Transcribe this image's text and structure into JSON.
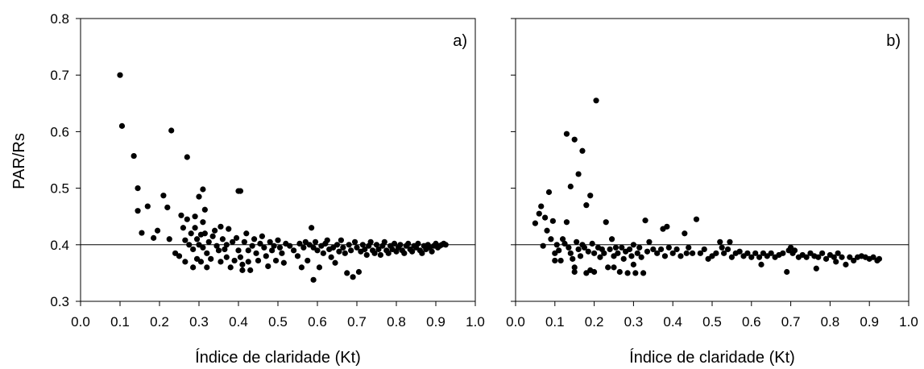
{
  "figure": {
    "ylabel": "PAR/Rs",
    "ref_line_y": 0.4
  },
  "chart_data": [
    {
      "type": "scatter",
      "panel_label": "a)",
      "xlabel": "Índice de claridade (Kt)",
      "ylabel": "PAR/Rs",
      "xlim": [
        0.0,
        1.0
      ],
      "ylim": [
        0.3,
        0.8
      ],
      "x_ticks": [
        "0.0",
        "0.1",
        "0.2",
        "0.3",
        "0.4",
        "0.5",
        "0.6",
        "0.7",
        "0.8",
        "0.9",
        "1.0"
      ],
      "y_ticks": [
        "0.3",
        "0.4",
        "0.5",
        "0.6",
        "0.7",
        "0.8"
      ],
      "reference_line": 0.4,
      "grid": false,
      "points": [
        [
          0.1,
          0.7
        ],
        [
          0.105,
          0.61
        ],
        [
          0.135,
          0.557
        ],
        [
          0.145,
          0.5
        ],
        [
          0.145,
          0.46
        ],
        [
          0.155,
          0.421
        ],
        [
          0.17,
          0.468
        ],
        [
          0.185,
          0.412
        ],
        [
          0.195,
          0.425
        ],
        [
          0.21,
          0.487
        ],
        [
          0.22,
          0.466
        ],
        [
          0.225,
          0.41
        ],
        [
          0.23,
          0.602
        ],
        [
          0.24,
          0.385
        ],
        [
          0.25,
          0.38
        ],
        [
          0.255,
          0.452
        ],
        [
          0.26,
          0.43
        ],
        [
          0.265,
          0.408
        ],
        [
          0.265,
          0.37
        ],
        [
          0.27,
          0.555
        ],
        [
          0.27,
          0.445
        ],
        [
          0.275,
          0.4
        ],
        [
          0.28,
          0.42
        ],
        [
          0.285,
          0.392
        ],
        [
          0.285,
          0.36
        ],
        [
          0.29,
          0.45
        ],
        [
          0.29,
          0.43
        ],
        [
          0.295,
          0.41
        ],
        [
          0.295,
          0.375
        ],
        [
          0.3,
          0.485
        ],
        [
          0.3,
          0.4
        ],
        [
          0.305,
          0.418
        ],
        [
          0.305,
          0.37
        ],
        [
          0.31,
          0.498
        ],
        [
          0.31,
          0.44
        ],
        [
          0.31,
          0.395
        ],
        [
          0.315,
          0.462
        ],
        [
          0.315,
          0.42
        ],
        [
          0.32,
          0.385
        ],
        [
          0.32,
          0.36
        ],
        [
          0.325,
          0.405
        ],
        [
          0.33,
          0.375
        ],
        [
          0.335,
          0.415
        ],
        [
          0.34,
          0.425
        ],
        [
          0.345,
          0.398
        ],
        [
          0.35,
          0.39
        ],
        [
          0.355,
          0.37
        ],
        [
          0.355,
          0.432
        ],
        [
          0.36,
          0.41
        ],
        [
          0.365,
          0.392
        ],
        [
          0.37,
          0.4
        ],
        [
          0.37,
          0.378
        ],
        [
          0.375,
          0.428
        ],
        [
          0.38,
          0.36
        ],
        [
          0.385,
          0.405
        ],
        [
          0.39,
          0.372
        ],
        [
          0.395,
          0.412
        ],
        [
          0.4,
          0.495
        ],
        [
          0.4,
          0.39
        ],
        [
          0.405,
          0.495
        ],
        [
          0.405,
          0.378
        ],
        [
          0.41,
          0.365
        ],
        [
          0.41,
          0.355
        ],
        [
          0.415,
          0.405
        ],
        [
          0.42,
          0.42
        ],
        [
          0.425,
          0.39
        ],
        [
          0.425,
          0.37
        ],
        [
          0.43,
          0.355
        ],
        [
          0.435,
          0.398
        ],
        [
          0.44,
          0.41
        ],
        [
          0.445,
          0.385
        ],
        [
          0.45,
          0.372
        ],
        [
          0.455,
          0.402
        ],
        [
          0.46,
          0.415
        ],
        [
          0.465,
          0.395
        ],
        [
          0.47,
          0.38
        ],
        [
          0.475,
          0.362
        ],
        [
          0.48,
          0.405
        ],
        [
          0.485,
          0.39
        ],
        [
          0.49,
          0.398
        ],
        [
          0.495,
          0.372
        ],
        [
          0.5,
          0.408
        ],
        [
          0.505,
          0.395
        ],
        [
          0.51,
          0.385
        ],
        [
          0.515,
          0.368
        ],
        [
          0.52,
          0.402
        ],
        [
          0.53,
          0.398
        ],
        [
          0.54,
          0.39
        ],
        [
          0.55,
          0.38
        ],
        [
          0.555,
          0.402
        ],
        [
          0.56,
          0.36
        ],
        [
          0.565,
          0.395
        ],
        [
          0.57,
          0.405
        ],
        [
          0.575,
          0.372
        ],
        [
          0.58,
          0.4
        ],
        [
          0.585,
          0.43
        ],
        [
          0.59,
          0.395
        ],
        [
          0.59,
          0.338
        ],
        [
          0.595,
          0.405
        ],
        [
          0.6,
          0.39
        ],
        [
          0.605,
          0.36
        ],
        [
          0.61,
          0.398
        ],
        [
          0.615,
          0.385
        ],
        [
          0.62,
          0.402
        ],
        [
          0.625,
          0.408
        ],
        [
          0.63,
          0.392
        ],
        [
          0.635,
          0.378
        ],
        [
          0.64,
          0.395
        ],
        [
          0.645,
          0.368
        ],
        [
          0.65,
          0.4
        ],
        [
          0.655,
          0.388
        ],
        [
          0.66,
          0.408
        ],
        [
          0.665,
          0.395
        ],
        [
          0.67,
          0.385
        ],
        [
          0.675,
          0.35
        ],
        [
          0.68,
          0.4
        ],
        [
          0.685,
          0.39
        ],
        [
          0.69,
          0.343
        ],
        [
          0.695,
          0.405
        ],
        [
          0.7,
          0.395
        ],
        [
          0.705,
          0.352
        ],
        [
          0.71,
          0.388
        ],
        [
          0.715,
          0.4
        ],
        [
          0.72,
          0.392
        ],
        [
          0.725,
          0.382
        ],
        [
          0.73,
          0.398
        ],
        [
          0.735,
          0.405
        ],
        [
          0.74,
          0.39
        ],
        [
          0.745,
          0.385
        ],
        [
          0.75,
          0.4
        ],
        [
          0.755,
          0.392
        ],
        [
          0.76,
          0.382
        ],
        [
          0.765,
          0.398
        ],
        [
          0.77,
          0.405
        ],
        [
          0.775,
          0.39
        ],
        [
          0.78,
          0.385
        ],
        [
          0.785,
          0.398
        ],
        [
          0.79,
          0.392
        ],
        [
          0.795,
          0.402
        ],
        [
          0.8,
          0.388
        ],
        [
          0.805,
          0.395
        ],
        [
          0.81,
          0.4
        ],
        [
          0.815,
          0.39
        ],
        [
          0.82,
          0.385
        ],
        [
          0.825,
          0.398
        ],
        [
          0.83,
          0.402
        ],
        [
          0.835,
          0.392
        ],
        [
          0.84,
          0.388
        ],
        [
          0.845,
          0.398
        ],
        [
          0.85,
          0.395
        ],
        [
          0.855,
          0.402
        ],
        [
          0.86,
          0.39
        ],
        [
          0.865,
          0.385
        ],
        [
          0.87,
          0.398
        ],
        [
          0.875,
          0.392
        ],
        [
          0.88,
          0.4
        ],
        [
          0.885,
          0.395
        ],
        [
          0.89,
          0.388
        ],
        [
          0.895,
          0.398
        ],
        [
          0.9,
          0.402
        ],
        [
          0.905,
          0.395
        ],
        [
          0.91,
          0.398
        ],
        [
          0.915,
          0.4
        ],
        [
          0.92,
          0.402
        ],
        [
          0.925,
          0.4
        ]
      ]
    },
    {
      "type": "scatter",
      "panel_label": "b)",
      "xlabel": "Índice de claridade (Kt)",
      "ylabel": "",
      "xlim": [
        0.0,
        1.0
      ],
      "ylim": [
        0.3,
        0.8
      ],
      "x_ticks": [
        "0.0",
        "0.1",
        "0.2",
        "0.3",
        "0.4",
        "0.5",
        "0.6",
        "0.7",
        "0.8",
        "0.9",
        "1.0"
      ],
      "y_ticks": [],
      "reference_line": 0.4,
      "grid": false,
      "points": [
        [
          0.05,
          0.438
        ],
        [
          0.06,
          0.455
        ],
        [
          0.065,
          0.468
        ],
        [
          0.07,
          0.398
        ],
        [
          0.075,
          0.448
        ],
        [
          0.08,
          0.425
        ],
        [
          0.085,
          0.493
        ],
        [
          0.09,
          0.41
        ],
        [
          0.095,
          0.442
        ],
        [
          0.1,
          0.385
        ],
        [
          0.1,
          0.372
        ],
        [
          0.105,
          0.4
        ],
        [
          0.11,
          0.39
        ],
        [
          0.115,
          0.372
        ],
        [
          0.12,
          0.41
        ],
        [
          0.125,
          0.402
        ],
        [
          0.13,
          0.596
        ],
        [
          0.13,
          0.44
        ],
        [
          0.135,
          0.395
        ],
        [
          0.14,
          0.385
        ],
        [
          0.14,
          0.503
        ],
        [
          0.145,
          0.375
        ],
        [
          0.15,
          0.586
        ],
        [
          0.15,
          0.36
        ],
        [
          0.15,
          0.352
        ],
        [
          0.155,
          0.405
        ],
        [
          0.16,
          0.392
        ],
        [
          0.16,
          0.525
        ],
        [
          0.165,
          0.38
        ],
        [
          0.17,
          0.4
        ],
        [
          0.17,
          0.566
        ],
        [
          0.175,
          0.395
        ],
        [
          0.18,
          0.35
        ],
        [
          0.18,
          0.47
        ],
        [
          0.185,
          0.388
        ],
        [
          0.19,
          0.487
        ],
        [
          0.19,
          0.355
        ],
        [
          0.195,
          0.402
        ],
        [
          0.2,
          0.385
        ],
        [
          0.2,
          0.352
        ],
        [
          0.205,
          0.655
        ],
        [
          0.21,
          0.395
        ],
        [
          0.215,
          0.378
        ],
        [
          0.22,
          0.392
        ],
        [
          0.225,
          0.385
        ],
        [
          0.23,
          0.44
        ],
        [
          0.235,
          0.36
        ],
        [
          0.24,
          0.392
        ],
        [
          0.245,
          0.41
        ],
        [
          0.25,
          0.38
        ],
        [
          0.25,
          0.36
        ],
        [
          0.255,
          0.395
        ],
        [
          0.26,
          0.385
        ],
        [
          0.265,
          0.352
        ],
        [
          0.27,
          0.395
        ],
        [
          0.275,
          0.375
        ],
        [
          0.28,
          0.388
        ],
        [
          0.285,
          0.35
        ],
        [
          0.29,
          0.392
        ],
        [
          0.295,
          0.38
        ],
        [
          0.3,
          0.4
        ],
        [
          0.3,
          0.365
        ],
        [
          0.305,
          0.35
        ],
        [
          0.31,
          0.385
        ],
        [
          0.315,
          0.395
        ],
        [
          0.32,
          0.378
        ],
        [
          0.325,
          0.35
        ],
        [
          0.33,
          0.443
        ],
        [
          0.335,
          0.388
        ],
        [
          0.34,
          0.405
        ],
        [
          0.35,
          0.392
        ],
        [
          0.36,
          0.385
        ],
        [
          0.37,
          0.392
        ],
        [
          0.375,
          0.428
        ],
        [
          0.38,
          0.38
        ],
        [
          0.385,
          0.432
        ],
        [
          0.39,
          0.395
        ],
        [
          0.4,
          0.385
        ],
        [
          0.41,
          0.392
        ],
        [
          0.42,
          0.38
        ],
        [
          0.43,
          0.42
        ],
        [
          0.435,
          0.385
        ],
        [
          0.44,
          0.395
        ],
        [
          0.45,
          0.385
        ],
        [
          0.46,
          0.445
        ],
        [
          0.47,
          0.385
        ],
        [
          0.48,
          0.392
        ],
        [
          0.49,
          0.375
        ],
        [
          0.5,
          0.38
        ],
        [
          0.51,
          0.385
        ],
        [
          0.52,
          0.405
        ],
        [
          0.525,
          0.395
        ],
        [
          0.53,
          0.385
        ],
        [
          0.54,
          0.392
        ],
        [
          0.545,
          0.405
        ],
        [
          0.55,
          0.378
        ],
        [
          0.56,
          0.385
        ],
        [
          0.57,
          0.388
        ],
        [
          0.58,
          0.38
        ],
        [
          0.59,
          0.385
        ],
        [
          0.6,
          0.378
        ],
        [
          0.61,
          0.385
        ],
        [
          0.62,
          0.378
        ],
        [
          0.625,
          0.365
        ],
        [
          0.63,
          0.385
        ],
        [
          0.64,
          0.38
        ],
        [
          0.65,
          0.385
        ],
        [
          0.66,
          0.378
        ],
        [
          0.67,
          0.382
        ],
        [
          0.68,
          0.385
        ],
        [
          0.69,
          0.352
        ],
        [
          0.695,
          0.39
        ],
        [
          0.7,
          0.395
        ],
        [
          0.705,
          0.385
        ],
        [
          0.71,
          0.39
        ],
        [
          0.72,
          0.378
        ],
        [
          0.73,
          0.382
        ],
        [
          0.74,
          0.378
        ],
        [
          0.75,
          0.385
        ],
        [
          0.76,
          0.38
        ],
        [
          0.765,
          0.358
        ],
        [
          0.77,
          0.378
        ],
        [
          0.78,
          0.385
        ],
        [
          0.79,
          0.375
        ],
        [
          0.8,
          0.382
        ],
        [
          0.81,
          0.378
        ],
        [
          0.815,
          0.37
        ],
        [
          0.82,
          0.385
        ],
        [
          0.83,
          0.378
        ],
        [
          0.84,
          0.365
        ],
        [
          0.85,
          0.378
        ],
        [
          0.86,
          0.372
        ],
        [
          0.87,
          0.378
        ],
        [
          0.88,
          0.38
        ],
        [
          0.89,
          0.378
        ],
        [
          0.9,
          0.375
        ],
        [
          0.91,
          0.378
        ],
        [
          0.92,
          0.372
        ],
        [
          0.925,
          0.375
        ]
      ]
    }
  ]
}
